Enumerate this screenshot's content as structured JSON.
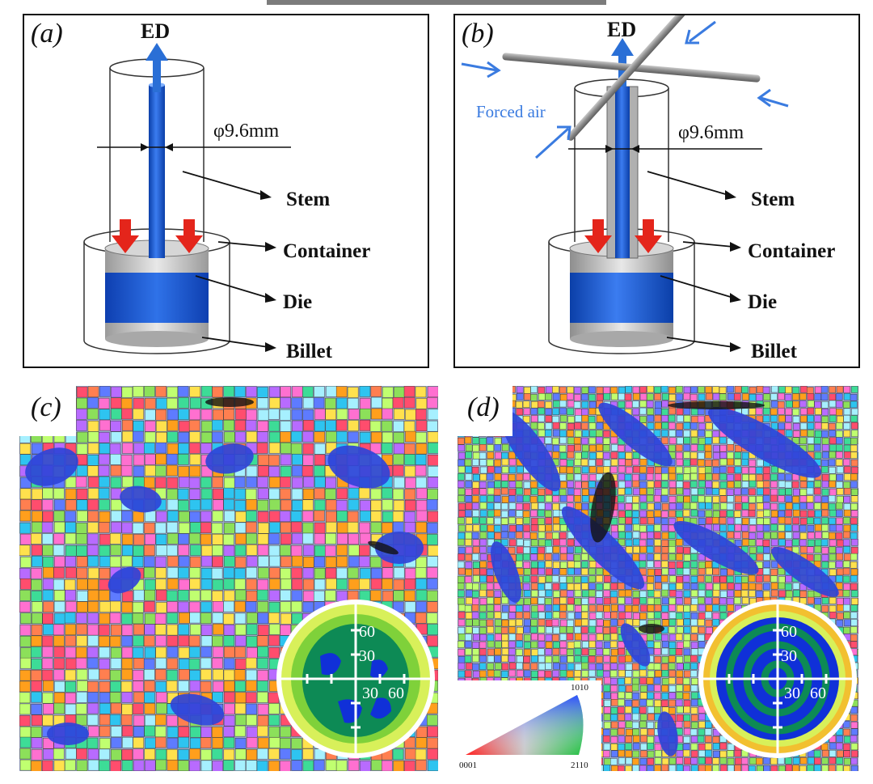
{
  "figure": {
    "panels": {
      "a": {
        "label": "(a)",
        "ed_label": "ED",
        "diameter": "φ9.6mm",
        "parts": [
          "Stem",
          "Container",
          "Die",
          "Billet"
        ]
      },
      "b": {
        "label": "(b)",
        "ed_label": "ED",
        "diameter": "φ9.6mm",
        "air_label": "Forced air",
        "parts": [
          "Stem",
          "Container",
          "Die",
          "Billet"
        ]
      },
      "c": {
        "label": "(c)",
        "pole_ticks": [
          "60",
          "30",
          "30",
          "60"
        ]
      },
      "d": {
        "label": "(d)",
        "pole_ticks": [
          "60",
          "30",
          "30",
          "60"
        ],
        "ipf_key": {
          "corner_0001": "0001",
          "corner_2110": "2110",
          "corner_1010": "1010"
        }
      }
    },
    "colors": {
      "rod_blue": "#1b56c6",
      "arrow_blue": "#2a6fd6",
      "press_red": "#e4251b",
      "ebsd_blue": "#2f44d8",
      "pole_dark": "#0d8a55",
      "pole_mid": "#7fd13a",
      "pole_light": "#d8f05a",
      "pole_blue": "#1030d8"
    }
  }
}
